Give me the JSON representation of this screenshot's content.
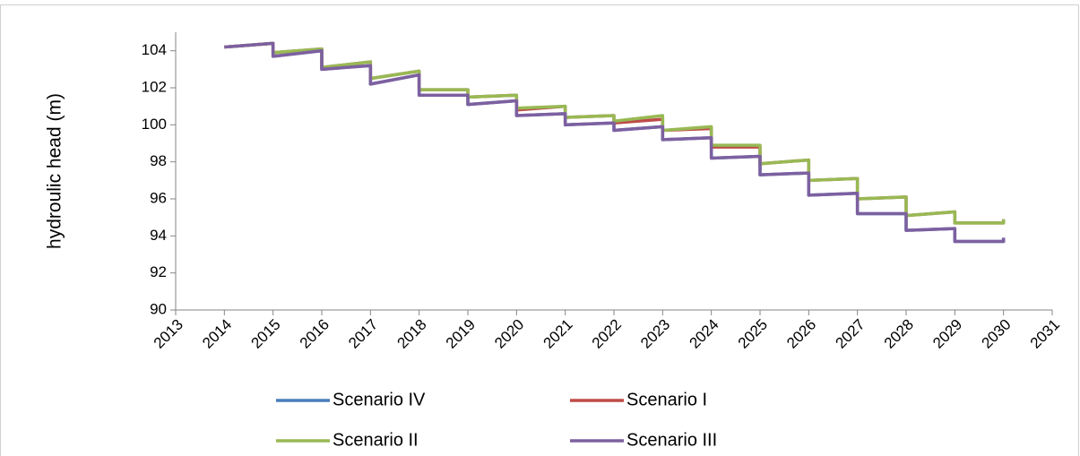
{
  "chart_data": {
    "type": "line",
    "y_label": "hydroulic head (m)",
    "x": [
      2014,
      2015,
      2015,
      2016,
      2016,
      2017,
      2017,
      2018,
      2018,
      2019,
      2019,
      2020,
      2020,
      2021,
      2021,
      2022,
      2022,
      2023,
      2023,
      2024,
      2024,
      2025,
      2025,
      2026,
      2026,
      2027,
      2027,
      2028,
      2028,
      2029,
      2029,
      2030,
      2030
    ],
    "series": [
      {
        "name": "Scenario IV",
        "color": "#4a7ebb",
        "values": [
          104.2,
          104.4,
          103.7,
          104.0,
          103.0,
          103.2,
          102.2,
          102.7,
          101.6,
          101.6,
          101.1,
          101.3,
          100.5,
          100.6,
          100.0,
          100.1,
          99.7,
          99.9,
          99.2,
          99.3,
          98.2,
          98.3,
          97.3,
          97.4,
          96.2,
          96.3,
          95.2,
          95.2,
          94.3,
          94.4,
          93.7,
          93.7,
          93.9
        ]
      },
      {
        "name": "Scenario I",
        "color": "#be4b48",
        "values": [
          104.2,
          104.4,
          103.9,
          104.1,
          103.1,
          103.4,
          102.5,
          102.9,
          101.9,
          101.9,
          101.5,
          101.6,
          100.8,
          101.0,
          100.4,
          100.5,
          100.1,
          100.3,
          99.7,
          99.8,
          98.8,
          98.8,
          97.9,
          98.1,
          97.0,
          97.1,
          96.0,
          96.1,
          95.1,
          95.3,
          94.7,
          94.7,
          94.9
        ]
      },
      {
        "name": "Scenario II",
        "color": "#98b954",
        "values": [
          104.2,
          104.4,
          103.9,
          104.1,
          103.1,
          103.4,
          102.5,
          102.9,
          101.9,
          101.9,
          101.5,
          101.6,
          100.9,
          101.0,
          100.4,
          100.5,
          100.2,
          100.5,
          99.7,
          99.9,
          98.9,
          98.9,
          97.9,
          98.1,
          97.0,
          97.1,
          96.0,
          96.1,
          95.1,
          95.3,
          94.7,
          94.7,
          94.9
        ]
      },
      {
        "name": "Scenario III",
        "color": "#7d60a0",
        "values": [
          104.2,
          104.4,
          103.7,
          104.0,
          103.0,
          103.2,
          102.2,
          102.7,
          101.6,
          101.6,
          101.1,
          101.3,
          100.5,
          100.6,
          100.0,
          100.1,
          99.7,
          99.9,
          99.2,
          99.3,
          98.2,
          98.3,
          97.3,
          97.4,
          96.2,
          96.3,
          95.2,
          95.2,
          94.3,
          94.4,
          93.7,
          93.7,
          93.9
        ]
      }
    ],
    "xlim": [
      2013,
      2031
    ],
    "xticks": [
      2013,
      2014,
      2015,
      2016,
      2017,
      2018,
      2019,
      2020,
      2021,
      2022,
      2023,
      2024,
      2025,
      2026,
      2027,
      2028,
      2029,
      2030,
      2031
    ],
    "ylim": [
      90,
      105
    ],
    "yticks": [
      90,
      92,
      94,
      96,
      98,
      100,
      102,
      104
    ],
    "grid": false,
    "legend": "bottom"
  }
}
